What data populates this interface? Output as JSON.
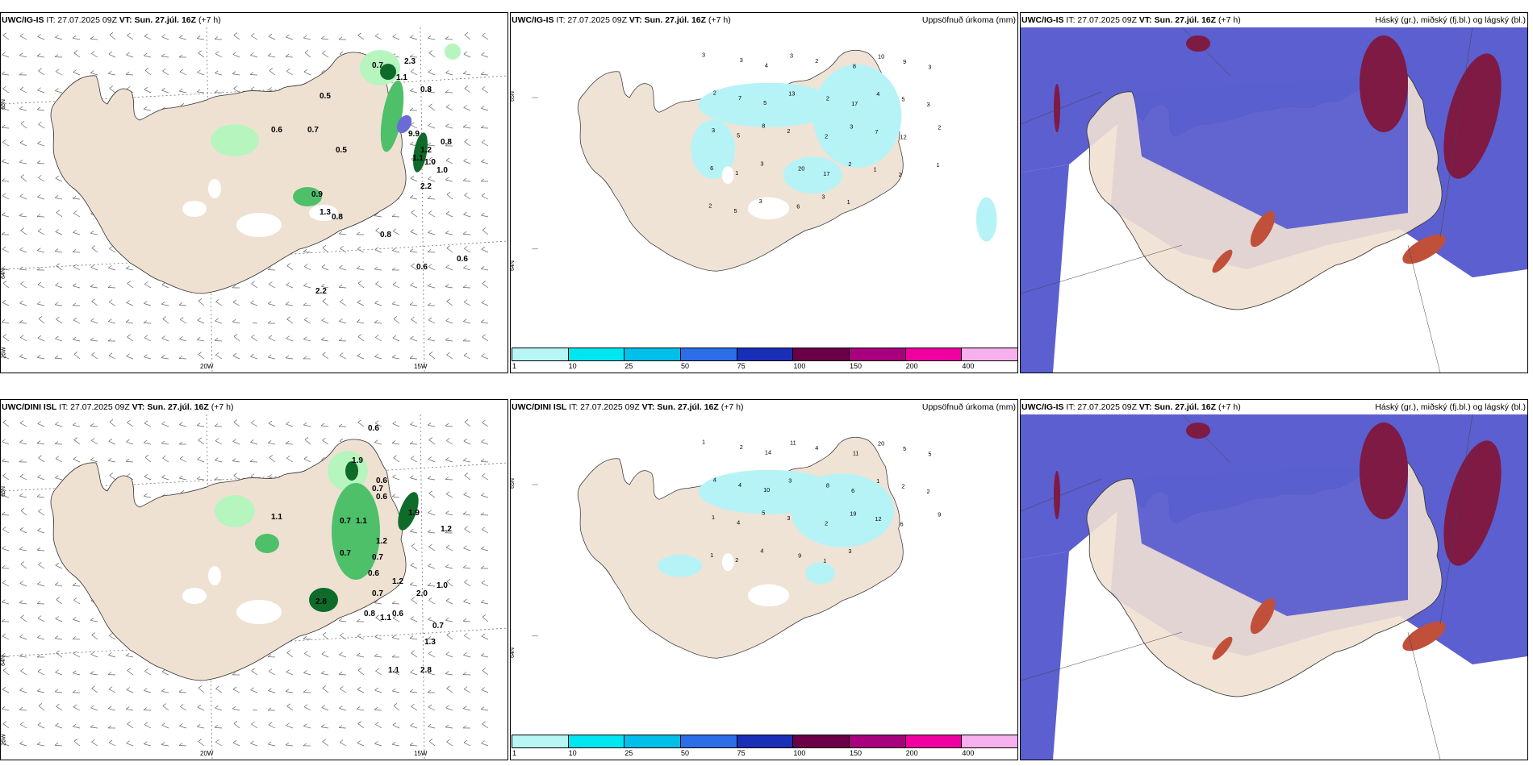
{
  "panels": [
    {
      "model": "UWC/IG-IS",
      "it": "IT: 27.07.2025 09Z",
      "vt_label": "VT:",
      "vt": "Sun. 27.júl. 16Z",
      "lead": "(+7 h)",
      "right_title": "",
      "lon_labels": [
        "20W",
        "15W"
      ],
      "lat_labels": [
        "65N",
        "64N",
        "25W"
      ],
      "values": [
        "0.7",
        "2.3",
        "1.1",
        "0.8",
        "0.5",
        "0.6",
        "0.7",
        "0.5",
        "9.9",
        "0.8",
        "1.2",
        "1.1",
        "1.0",
        "2.2",
        "1.0",
        "0.9",
        "1.3",
        "0.8",
        "0.8",
        "0.6",
        "0.6",
        "2.2"
      ]
    },
    {
      "model": "UWC/IG-IS",
      "it": "IT: 27.07.2025 09Z",
      "vt_label": "VT:",
      "vt": "Sun. 27.júl. 16Z",
      "lead": "(+7 h)",
      "right_title": "Uppsöfnuð úrkoma (mm)",
      "lat_labels": [
        "65N",
        "64N"
      ],
      "values": [
        "3",
        "3",
        "4",
        "3",
        "2",
        "8",
        "10",
        "9",
        "3",
        "2",
        "7",
        "5",
        "13",
        "2",
        "17",
        "4",
        "5",
        "3",
        "3",
        "5",
        "8",
        "2",
        "2",
        "3",
        "7",
        "12",
        "2",
        "6",
        "1",
        "3",
        "20",
        "17",
        "2",
        "1",
        "2",
        "1",
        "2",
        "5",
        "3",
        "6",
        "3",
        "1"
      ]
    },
    {
      "model": "UWC/IG-IS",
      "it": "IT: 27.07.2025 09Z",
      "vt_label": "VT:",
      "vt": "Sun. 27.júl. 16Z",
      "lead": "(+7 h)",
      "right_title": "Háský (gr.), miðský (fj.bl.) og lágský (bl.)"
    },
    {
      "model": "UWC/DINI ISL",
      "it": "IT: 27.07.2025 09Z",
      "vt_label": "VT:",
      "vt": "Sun. 27.júl. 16Z",
      "lead": "(+7 h)",
      "right_title": "",
      "lon_labels": [
        "20W",
        "15W"
      ],
      "lat_labels": [
        "65N",
        "64N",
        "25W"
      ],
      "values": [
        "0.6",
        "1.9",
        "0.6",
        "0.7",
        "0.6",
        "1.1",
        "0.7",
        "1.1",
        "1.2",
        "1.9",
        "1.2",
        "0.7",
        "0.7",
        "0.6",
        "0.7",
        "1.2",
        "2.0",
        "1.0",
        "2.8",
        "0.8",
        "1.1",
        "0.6",
        "0.7",
        "1.3",
        "1.1",
        "2.8"
      ]
    },
    {
      "model": "UWC/DINI ISL",
      "it": "IT: 27.07.2025 09Z",
      "vt_label": "VT:",
      "vt": "Sun. 27.júl. 16Z",
      "lead": "(+7 h)",
      "right_title": "Uppsöfnuð úrkoma (mm)",
      "lat_labels": [
        "65N",
        "64N"
      ],
      "values": [
        "1",
        "2",
        "14",
        "11",
        "4",
        "11",
        "20",
        "5",
        "5",
        "4",
        "4",
        "10",
        "3",
        "8",
        "6",
        "1",
        "2",
        "2",
        "1",
        "4",
        "5",
        "3",
        "2",
        "19",
        "12",
        "6",
        "9",
        "1",
        "2",
        "4",
        "9",
        "1",
        "3"
      ]
    },
    {
      "model": "UWC/IG-IS",
      "it": "IT: 27.07.2025 09Z",
      "vt_label": "VT:",
      "vt": "Sun. 27.júl. 16Z",
      "lead": "(+7 h)",
      "right_title": "Háský (gr.), miðský (fj.bl.) og lágský (bl.)"
    }
  ],
  "colorbar": {
    "ticks": [
      "1",
      "10",
      "25",
      "50",
      "75",
      "100",
      "150",
      "200",
      "400"
    ],
    "colors": [
      "#b8f6f6",
      "#00e6f0",
      "#00bfe8",
      "#2b6ee8",
      "#1a2fb8",
      "#6b0048",
      "#a8007e",
      "#f000a0",
      "#f6b0ec"
    ]
  },
  "colors": {
    "land": "#efe1d2",
    "precip_land": "#efe3d6",
    "precip_cyan": "#b6f3f6",
    "green_light": "#b7f5bf",
    "green_mid": "#4ec06a",
    "green_dark": "#0e6b2a",
    "low_cloud": "#5b5fcf",
    "high_cloud": "#7e1a44",
    "mid_cloud": "#c0503a"
  }
}
